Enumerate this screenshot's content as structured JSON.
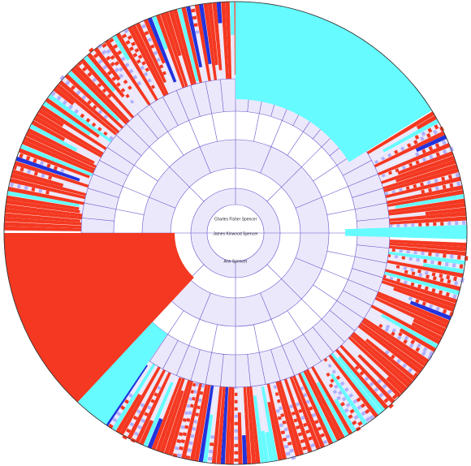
{
  "center": {
    "names": [
      "Charles Fisher Spencer",
      "James Kinwood Spencer",
      "Ann Spencer"
    ]
  }
}
